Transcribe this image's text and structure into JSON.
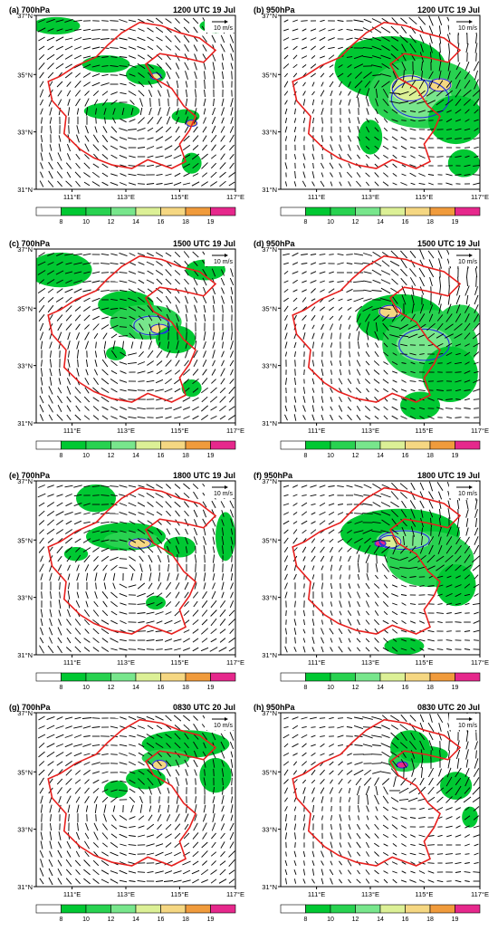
{
  "figure": {
    "ref_vector_label": "10 m/s",
    "lat_ticks": [
      "37°N",
      "35°N",
      "33°N",
      "31°N"
    ],
    "lon_ticks": [
      "111°E",
      "113°E",
      "115°E",
      "117°E"
    ],
    "colorbar_labels": [
      "8",
      "10",
      "12",
      "14",
      "16",
      "18",
      "19"
    ],
    "colors": {
      "boundary": "#e8201e",
      "contour": "#2233dd",
      "vector": "#000000",
      "levels": [
        "#ffffff",
        "#00c832",
        "#28d250",
        "#78e68c",
        "#dcf096",
        "#f5d782",
        "#f09b3c",
        "#e6288c"
      ]
    },
    "panels": [
      {
        "id": "a",
        "label": "(a) 700hPa",
        "time": "1200 UTC 19 Jul"
      },
      {
        "id": "b",
        "label": "(b) 950hPa",
        "time": "1200 UTC 19 Jul"
      },
      {
        "id": "c",
        "label": "(c) 700hPa",
        "time": "1500 UTC 19 Jul"
      },
      {
        "id": "d",
        "label": "(d) 950hPa",
        "time": "1500 UTC 19 Jul"
      },
      {
        "id": "e",
        "label": "(e) 700hPa",
        "time": "1800 UTC 19 Jul"
      },
      {
        "id": "f",
        "label": "(f) 950hPa",
        "time": "1800 UTC 19 Jul"
      },
      {
        "id": "g",
        "label": "(g) 700hPa",
        "time": "0830 UTC 20 Jul"
      },
      {
        "id": "h",
        "label": "(h) 950hPa",
        "time": "0830 UTC 20 Jul"
      }
    ]
  }
}
